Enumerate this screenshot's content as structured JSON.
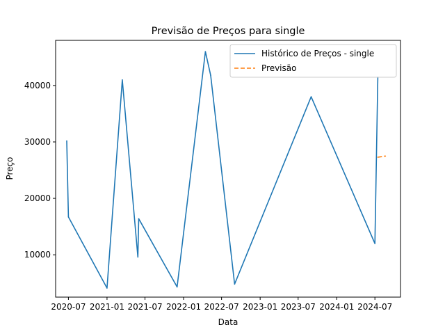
{
  "chart_data": {
    "type": "line",
    "title": "Previsão de Preços para single",
    "xlabel": "Data",
    "ylabel": "Preço",
    "x_ticks": [
      "2020-07",
      "2021-01",
      "2021-07",
      "2022-01",
      "2022-07",
      "2023-01",
      "2023-07",
      "2024-01",
      "2024-07"
    ],
    "y_ticks": [
      10000,
      20000,
      30000,
      40000
    ],
    "xlim": [
      "2020-05-01",
      "2024-10-31"
    ],
    "ylim": [
      2500,
      48000
    ],
    "grid": false,
    "legend_position": "top-right",
    "series": [
      {
        "name": "Histórico de Preços - single",
        "color": "#1f77b4",
        "style": "solid",
        "points": [
          {
            "x": "2020-06-23",
            "y": 30200
          },
          {
            "x": "2020-07-01",
            "y": 16700
          },
          {
            "x": "2021-01-01",
            "y": 4100
          },
          {
            "x": "2021-03-15",
            "y": 41000
          },
          {
            "x": "2021-05-28",
            "y": 9600
          },
          {
            "x": "2021-06-01",
            "y": 16400
          },
          {
            "x": "2021-12-01",
            "y": 4300
          },
          {
            "x": "2022-04-15",
            "y": 46000
          },
          {
            "x": "2022-05-10",
            "y": 41800
          },
          {
            "x": "2022-09-01",
            "y": 4800
          },
          {
            "x": "2023-09-01",
            "y": 38000
          },
          {
            "x": "2024-07-01",
            "y": 12000
          },
          {
            "x": "2024-07-15",
            "y": 41500
          }
        ]
      },
      {
        "name": "Previsão",
        "color": "#ff7f0e",
        "style": "dashed",
        "points": [
          {
            "x": "2024-07-15",
            "y": 27300
          },
          {
            "x": "2024-08-20",
            "y": 27500
          }
        ]
      }
    ]
  }
}
